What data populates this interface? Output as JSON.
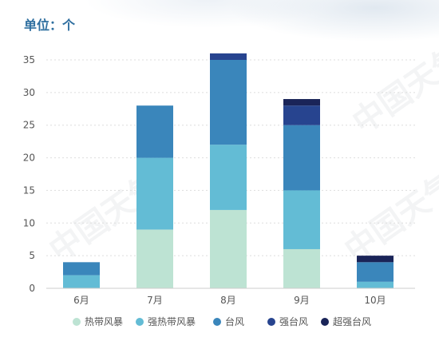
{
  "header": {
    "unit": "单位：个"
  },
  "watermark": {
    "text": "中国天气"
  },
  "colors": {
    "tropical_storm": "#bde3d3",
    "severe_tropical_storm": "#63bcd5",
    "typhoon": "#3a86bb",
    "severe_typhoon": "#27448f",
    "super_typhoon": "#1a2458",
    "axis_text": "#555555",
    "grid": "#dddddd"
  },
  "chart_data": {
    "type": "bar",
    "stacked": true,
    "title": "",
    "xlabel": "",
    "ylabel": "",
    "categories": [
      "6月",
      "7月",
      "8月",
      "9月",
      "10月"
    ],
    "ylim": [
      0,
      35
    ],
    "yticks": [
      0,
      5,
      10,
      15,
      20,
      25,
      30,
      35
    ],
    "grid": true,
    "legend": "bottom",
    "series": [
      {
        "name": "热带风暴",
        "values": [
          0,
          9,
          12,
          6,
          0
        ]
      },
      {
        "name": "强热带风暴",
        "values": [
          2,
          11,
          10,
          9,
          1
        ]
      },
      {
        "name": "台风",
        "values": [
          2,
          8,
          13,
          10,
          3
        ]
      },
      {
        "name": "强台风",
        "values": [
          0,
          0,
          1,
          3,
          0
        ]
      },
      {
        "name": "超强台风",
        "values": [
          0,
          0,
          0,
          1,
          1
        ]
      }
    ]
  }
}
